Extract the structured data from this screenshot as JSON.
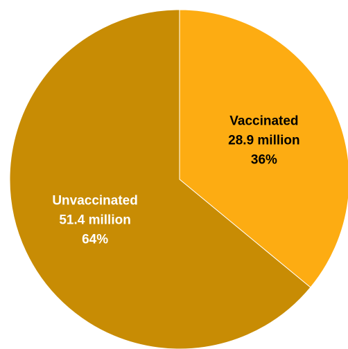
{
  "chart_data": {
    "type": "pie",
    "title": "",
    "slices": [
      {
        "name": "Vaccinated",
        "value": 28.9,
        "value_label": "28.9 million",
        "percent_label": "36%",
        "color": "#FDAC12",
        "text_color": "#000000"
      },
      {
        "name": "Unvaccinated",
        "value": 51.4,
        "value_label": "51.4 million",
        "percent_label": "64%",
        "color": "#C88C04",
        "text_color": "#FFFFFF"
      }
    ],
    "start_angle": "12 o'clock",
    "direction": "clockwise",
    "legend": "none"
  }
}
